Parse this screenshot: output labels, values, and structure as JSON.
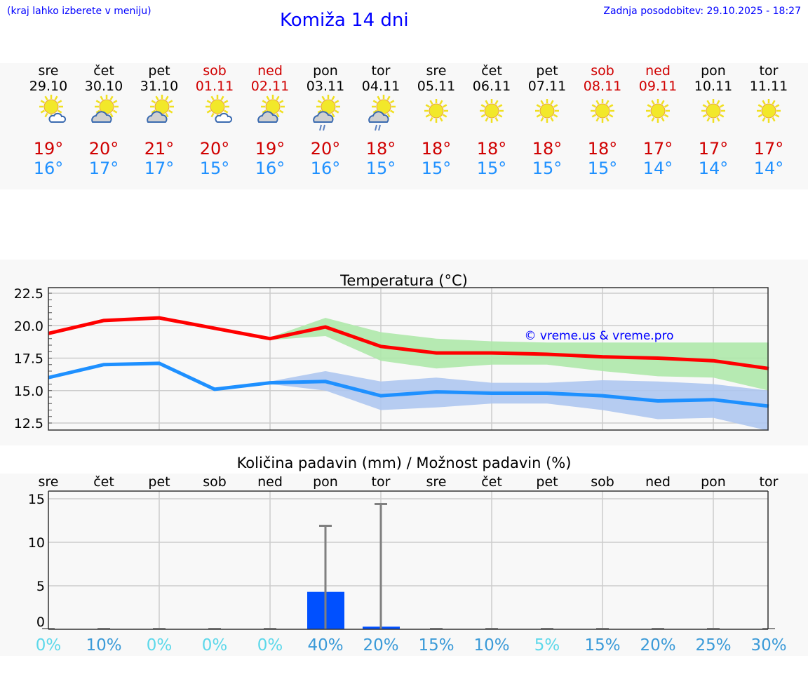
{
  "header": {
    "hint": "(kraj lahko izberete v meniju)",
    "title": "Komiža 14 dni",
    "updated": "Zadnja posodobitev: 29.10.2025 - 18:27"
  },
  "days": [
    {
      "name": "sre",
      "date": "29.10",
      "weekend": false,
      "icon": "sun-small-cloud-icon",
      "max": "19°",
      "min": "16°"
    },
    {
      "name": "čet",
      "date": "30.10",
      "weekend": false,
      "icon": "sun-cloud-icon",
      "max": "20°",
      "min": "17°"
    },
    {
      "name": "pet",
      "date": "31.10",
      "weekend": false,
      "icon": "sun-cloud-icon",
      "max": "21°",
      "min": "17°"
    },
    {
      "name": "sob",
      "date": "01.11",
      "weekend": true,
      "icon": "sun-small-cloud-icon",
      "max": "20°",
      "min": "15°"
    },
    {
      "name": "ned",
      "date": "02.11",
      "weekend": true,
      "icon": "sun-cloud-icon",
      "max": "19°",
      "min": "16°"
    },
    {
      "name": "pon",
      "date": "03.11",
      "weekend": false,
      "icon": "sun-cloud-rain-icon",
      "max": "20°",
      "min": "16°"
    },
    {
      "name": "tor",
      "date": "04.11",
      "weekend": false,
      "icon": "sun-cloud-rain-icon",
      "max": "18°",
      "min": "15°"
    },
    {
      "name": "sre",
      "date": "05.11",
      "weekend": false,
      "icon": "sun-icon",
      "max": "18°",
      "min": "15°"
    },
    {
      "name": "čet",
      "date": "06.11",
      "weekend": false,
      "icon": "sun-icon",
      "max": "18°",
      "min": "15°"
    },
    {
      "name": "pet",
      "date": "07.11",
      "weekend": false,
      "icon": "sun-icon",
      "max": "18°",
      "min": "15°"
    },
    {
      "name": "sob",
      "date": "08.11",
      "weekend": true,
      "icon": "sun-icon",
      "max": "18°",
      "min": "15°"
    },
    {
      "name": "ned",
      "date": "09.11",
      "weekend": true,
      "icon": "sun-icon",
      "max": "17°",
      "min": "14°"
    },
    {
      "name": "pon",
      "date": "10.11",
      "weekend": false,
      "icon": "sun-icon",
      "max": "17°",
      "min": "14°"
    },
    {
      "name": "tor",
      "date": "11.11",
      "weekend": false,
      "icon": "sun-icon",
      "max": "17°",
      "min": "14°"
    }
  ],
  "colors": {
    "max": "#ff0000",
    "min": "#1e90ff",
    "maxBand": "#aee8aa",
    "minBand": "#aec6f0",
    "bar": "#0050ff",
    "err": "#808080"
  },
  "chart_data": [
    {
      "type": "line",
      "title": "Temperatura (°C)",
      "ylim": [
        12,
        22.7
      ],
      "yticks": [
        "12.5",
        "15.0",
        "17.5",
        "20.0",
        "22.5"
      ],
      "watermark": "© vreme.us & vreme.pro",
      "series": [
        {
          "name": "max",
          "values": [
            19.4,
            20.4,
            20.6,
            19.8,
            19.0,
            19.9,
            18.4,
            17.9,
            17.9,
            17.8,
            17.6,
            17.5,
            17.3,
            16.7
          ],
          "band_upper": [
            19.4,
            20.5,
            20.7,
            19.9,
            19.1,
            20.6,
            19.5,
            19.0,
            18.8,
            18.7,
            18.7,
            18.7,
            18.7,
            18.7
          ],
          "band_lower": [
            19.4,
            20.3,
            20.5,
            19.7,
            18.9,
            19.2,
            17.3,
            16.7,
            17.0,
            17.0,
            16.5,
            16.1,
            16.0,
            15.0
          ]
        },
        {
          "name": "min",
          "values": [
            16.0,
            17.0,
            17.1,
            15.1,
            15.6,
            15.7,
            14.6,
            14.9,
            14.8,
            14.8,
            14.6,
            14.2,
            14.3,
            13.8
          ],
          "band_upper": [
            16.0,
            17.1,
            17.2,
            15.2,
            15.7,
            16.5,
            15.7,
            16.0,
            15.6,
            15.6,
            15.8,
            15.7,
            15.5,
            15.0
          ],
          "band_lower": [
            16.0,
            16.9,
            17.0,
            15.0,
            15.5,
            15.0,
            13.5,
            13.7,
            14.0,
            14.0,
            13.5,
            12.8,
            12.9,
            11.9
          ]
        }
      ]
    },
    {
      "type": "bar",
      "title": "Količina padavin (mm) / Možnost padavin (%)",
      "ylim": [
        -0.5,
        16
      ],
      "yticks": [
        "0",
        "5",
        "10",
        "15"
      ],
      "categories": [
        "sre",
        "čet",
        "pet",
        "sob",
        "ned",
        "pon",
        "tor",
        "sre",
        "čet",
        "pet",
        "sob",
        "ned",
        "pon",
        "tor"
      ],
      "values": [
        0,
        0,
        0,
        0,
        0,
        4.3,
        0.3,
        0,
        0,
        0,
        0,
        0,
        0,
        0
      ],
      "error_max": [
        0,
        0,
        0,
        0,
        0,
        11.9,
        14.4,
        0,
        0,
        0,
        0,
        0,
        0,
        0
      ],
      "probability": [
        "0%",
        "10%",
        "0%",
        "0%",
        "0%",
        "40%",
        "20%",
        "15%",
        "10%",
        "5%",
        "15%",
        "20%",
        "25%",
        "30%"
      ]
    }
  ]
}
